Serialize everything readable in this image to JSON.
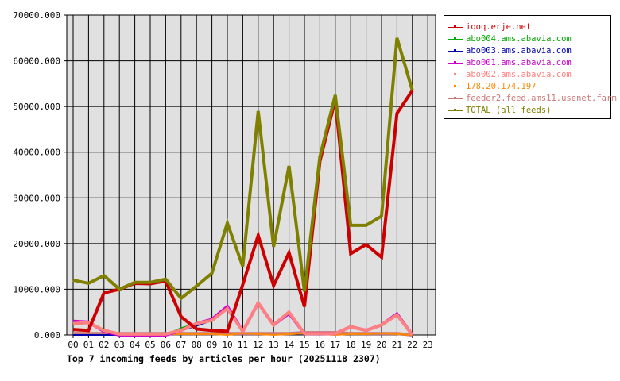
{
  "chart_data": {
    "type": "line",
    "title": "Top 7 incoming feeds by articles per hour (20251118 2307)",
    "xlabel": "",
    "ylabel": "",
    "ylim": [
      0,
      70000
    ],
    "yticks": [
      "0.000",
      "10000.000",
      "20000.000",
      "30000.000",
      "40000.000",
      "50000.000",
      "60000.000",
      "70000.000"
    ],
    "categories": [
      "00",
      "01",
      "02",
      "03",
      "04",
      "05",
      "06",
      "07",
      "08",
      "09",
      "10",
      "11",
      "12",
      "13",
      "14",
      "15",
      "16",
      "17",
      "18",
      "19",
      "20",
      "21",
      "22",
      "23"
    ],
    "grid": true,
    "legend_position": "right",
    "series": [
      {
        "name": "iqoq.erje.net",
        "color": "#cc0000",
        "values": [
          1200,
          1000,
          9200,
          10000,
          11300,
          11200,
          11800,
          4000,
          1300,
          1000,
          800,
          11000,
          21800,
          10800,
          18000,
          6200,
          38000,
          51500,
          17800,
          19800,
          17000,
          48500,
          53500,
          null
        ]
      },
      {
        "name": "abo004.ams.abavia.com",
        "color": "#00aa00",
        "values": [
          0,
          0,
          0,
          0,
          0,
          0,
          0,
          1500,
          2500,
          3200,
          6000,
          800,
          7000,
          2200,
          5000,
          300,
          300,
          300,
          2000,
          1000,
          2200,
          4500,
          0,
          null
        ]
      },
      {
        "name": "abo003.ams.abavia.com",
        "color": "#0000aa",
        "values": [
          0,
          0,
          0,
          0,
          0,
          0,
          0,
          1000,
          2000,
          3200,
          6000,
          800,
          7000,
          2200,
          4500,
          300,
          300,
          300,
          1800,
          1000,
          2200,
          4500,
          0,
          null
        ]
      },
      {
        "name": "abo001.ams.abavia.com",
        "color": "#cc00cc",
        "values": [
          3000,
          2800,
          800,
          0,
          0,
          0,
          0,
          1000,
          2500,
          3400,
          6200,
          800,
          7000,
          2200,
          4800,
          300,
          300,
          300,
          1800,
          1000,
          2200,
          4600,
          0,
          null
        ]
      },
      {
        "name": "abo002.ams.abavia.com",
        "color": "#ff8080",
        "values": [
          2500,
          2700,
          1000,
          200,
          200,
          200,
          200,
          1000,
          2500,
          3200,
          5800,
          800,
          7000,
          2200,
          5000,
          300,
          300,
          300,
          1800,
          1000,
          2200,
          4400,
          0,
          null
        ]
      },
      {
        "name": "178.20.174.197",
        "color": "#ff8800",
        "values": [
          0,
          0,
          0,
          0,
          0,
          200,
          200,
          200,
          200,
          200,
          0,
          400,
          200,
          0,
          200,
          400,
          200,
          0,
          200,
          200,
          400,
          200,
          0,
          null
        ]
      },
      {
        "name": "feeder2.feed.ams11.usenet.farm",
        "color": "#cc7777",
        "values": [
          300,
          300,
          300,
          300,
          300,
          300,
          300,
          300,
          300,
          300,
          300,
          300,
          300,
          300,
          300,
          500,
          500,
          500,
          300,
          300,
          300,
          300,
          0,
          null
        ]
      },
      {
        "name": "TOTAL (all feeds)",
        "color": "#808000",
        "values": [
          12000,
          11300,
          13000,
          10000,
          11500,
          11500,
          12200,
          8000,
          10700,
          13500,
          24500,
          15000,
          49000,
          19300,
          37000,
          9500,
          39000,
          52500,
          24000,
          24000,
          26000,
          65000,
          53500,
          null
        ]
      }
    ]
  },
  "legend": {
    "items": [
      {
        "label": "iqoq.erje.net",
        "color": "#cc0000"
      },
      {
        "label": "abo004.ams.abavia.com",
        "color": "#00aa00"
      },
      {
        "label": "abo003.ams.abavia.com",
        "color": "#0000aa"
      },
      {
        "label": "abo001.ams.abavia.com",
        "color": "#cc00cc"
      },
      {
        "label": "abo002.ams.abavia.com",
        "color": "#ff8080"
      },
      {
        "label": "178.20.174.197",
        "color": "#ff8800"
      },
      {
        "label": "feeder2.feed.ams11.usenet.farm",
        "color": "#cc7777"
      },
      {
        "label": "TOTAL (all feeds)",
        "color": "#808000"
      }
    ]
  },
  "colors": {
    "plot_background": "#e0e0e0",
    "grid": "#000000",
    "page_background": "#ffffff"
  }
}
